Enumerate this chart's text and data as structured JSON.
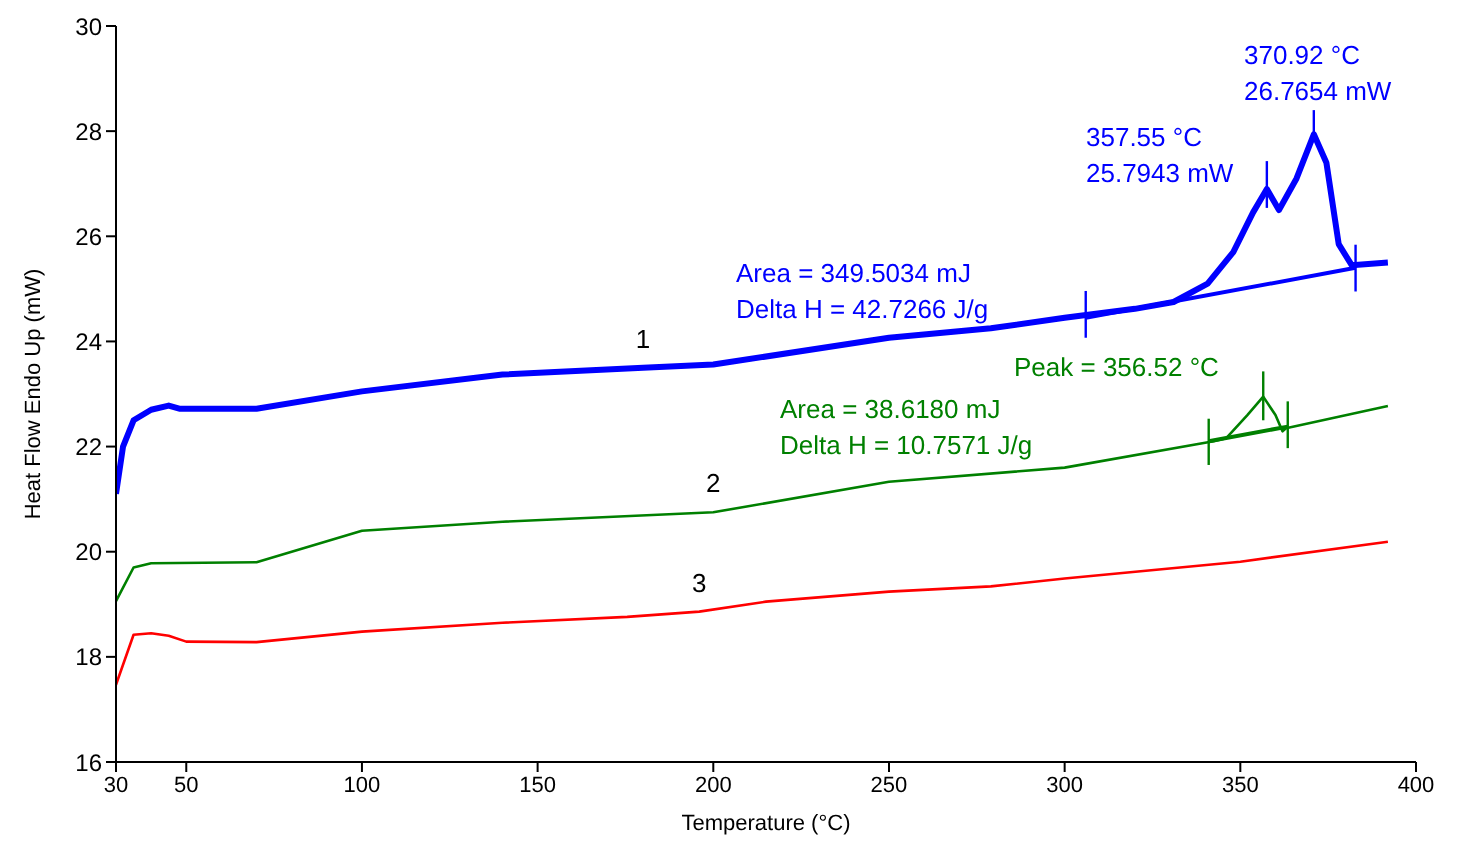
{
  "chart_data": {
    "type": "line",
    "xlabel": "Temperature (°C)",
    "ylabel": "Heat Flow Endo Up (mW)",
    "xlim": [
      30,
      400
    ],
    "xticks": [
      30,
      50,
      100,
      150,
      200,
      250,
      300,
      350,
      400
    ],
    "ylim": [
      16,
      30
    ],
    "yticks": [
      16,
      18,
      20,
      22,
      24,
      26,
      28,
      30
    ],
    "grid": false,
    "marker": "none",
    "line_style": "solid",
    "annotations": [
      "Area = 349.5034 mJ\nDelta H = 42.7266 J/g",
      "357.55 °C\n25.7943 mW",
      "370.92 °C\n26.7654 mW",
      "Peak = 356.52 °C",
      "Area = 38.6180 mJ\nDelta H = 10.7571 J/g"
    ],
    "series": [
      {
        "name": "1",
        "color": "#0000ff",
        "x": [
          30,
          32,
          35,
          40,
          45,
          48,
          70,
          100,
          140,
          180,
          200,
          250,
          279,
          300,
          320,
          331,
          340.7,
          348,
          353.6,
          357.55,
          361,
          366,
          370.92,
          374.5,
          378,
          381.7,
          392
        ],
        "values": [
          21.1,
          22.0,
          22.5,
          22.7,
          22.78,
          22.72,
          22.72,
          23.05,
          23.37,
          23.5,
          23.56,
          24.07,
          24.25,
          24.45,
          24.62,
          24.75,
          25.1,
          25.7,
          26.45,
          26.9,
          26.5,
          27.1,
          27.94,
          27.4,
          25.85,
          25.45,
          25.5
        ]
      },
      {
        "name": "2",
        "color": "#008000",
        "x": [
          30,
          35,
          40,
          70,
          100,
          140,
          200,
          250,
          300,
          342.4,
          346,
          352,
          356.52,
          360,
          362,
          363,
          392
        ],
        "values": [
          19.06,
          19.7,
          19.78,
          19.8,
          20.4,
          20.57,
          20.75,
          21.33,
          21.6,
          22.1,
          22.16,
          22.6,
          22.95,
          22.6,
          22.29,
          22.35,
          22.77
        ]
      },
      {
        "name": "3",
        "color": "#ff0000",
        "x": [
          30,
          35,
          40,
          45,
          50,
          70,
          100,
          140,
          175.5,
          196,
          215,
          250,
          279,
          300,
          350,
          392
        ],
        "values": [
          17.47,
          18.42,
          18.45,
          18.4,
          18.29,
          18.28,
          18.48,
          18.65,
          18.76,
          18.86,
          19.05,
          19.24,
          19.34,
          19.49,
          19.81,
          20.19
        ]
      },
      {
        "color": "#0000ff",
        "x": [
          306,
          382.8
        ],
        "values": [
          24.45,
          25.4
        ]
      },
      {
        "color": "#0000ff",
        "x": [
          306,
          306
        ],
        "values": [
          24.07,
          24.96
        ]
      },
      {
        "color": "#0000ff",
        "x": [
          382.8,
          382.8
        ],
        "values": [
          24.95,
          25.84
        ]
      },
      {
        "color": "#0000ff",
        "x": [
          357.55,
          357.55
        ],
        "values": [
          26.54,
          27.43
        ]
      },
      {
        "color": "#0000ff",
        "x": [
          370.92,
          370.92
        ],
        "values": [
          27.9,
          28.4
        ]
      },
      {
        "color": "#008000",
        "x": [
          341,
          363.5
        ],
        "values": [
          22.1,
          22.38
        ]
      },
      {
        "color": "#008000",
        "x": [
          341,
          341
        ],
        "values": [
          21.65,
          22.53
        ]
      },
      {
        "color": "#008000",
        "x": [
          356.52,
          356.52
        ],
        "values": [
          22.5,
          23.43
        ]
      },
      {
        "color": "#008000",
        "x": [
          363.5,
          363.5
        ],
        "values": [
          21.97,
          22.86
        ]
      }
    ]
  }
}
